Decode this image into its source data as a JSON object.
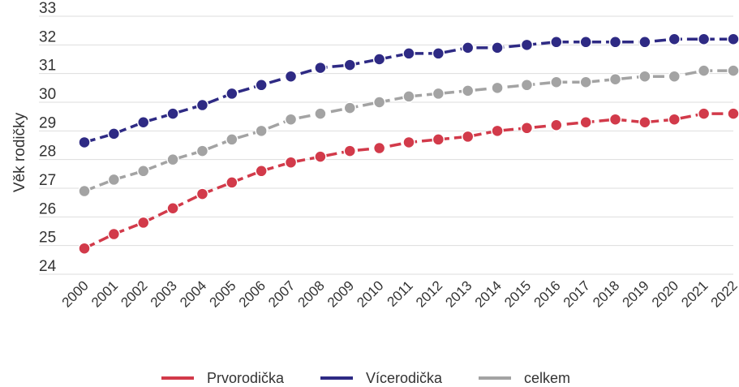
{
  "chart_data": {
    "type": "line",
    "ylabel": "Věk rodičky",
    "ylim": [
      24,
      33
    ],
    "y_ticks": [
      24,
      25,
      26,
      27,
      28,
      29,
      30,
      31,
      32,
      33
    ],
    "grid": true,
    "legend_position": "bottom",
    "categories": [
      "2000",
      "2001",
      "2002",
      "2003",
      "2004",
      "2005",
      "2006",
      "2007",
      "2008",
      "2009",
      "2010",
      "2011",
      "2012",
      "2013",
      "2014",
      "2015",
      "2016",
      "2017",
      "2018",
      "2019",
      "2020",
      "2021",
      "2022"
    ],
    "series": [
      {
        "name": "Prvorodička",
        "color": "#d23a4a",
        "values": [
          24.9,
          25.4,
          25.8,
          26.3,
          26.8,
          27.2,
          27.6,
          27.9,
          28.1,
          28.3,
          28.4,
          28.6,
          28.7,
          28.8,
          29.0,
          29.1,
          29.2,
          29.3,
          29.4,
          29.3,
          29.4,
          29.6,
          29.6
        ]
      },
      {
        "name": "Vícerodička",
        "color": "#2e2a84",
        "values": [
          28.6,
          28.9,
          29.3,
          29.6,
          29.9,
          30.3,
          30.6,
          30.9,
          31.2,
          31.3,
          31.5,
          31.7,
          31.7,
          31.9,
          31.9,
          32.0,
          32.1,
          32.1,
          32.1,
          32.1,
          32.2,
          32.2,
          32.2
        ]
      },
      {
        "name": "celkem",
        "color": "#a3a3a3",
        "values": [
          26.9,
          27.3,
          27.6,
          28.0,
          28.3,
          28.7,
          29.0,
          29.4,
          29.6,
          29.8,
          30.0,
          30.2,
          30.3,
          30.4,
          30.5,
          30.6,
          30.7,
          30.7,
          30.8,
          30.9,
          30.9,
          31.1,
          31.1
        ]
      }
    ]
  }
}
